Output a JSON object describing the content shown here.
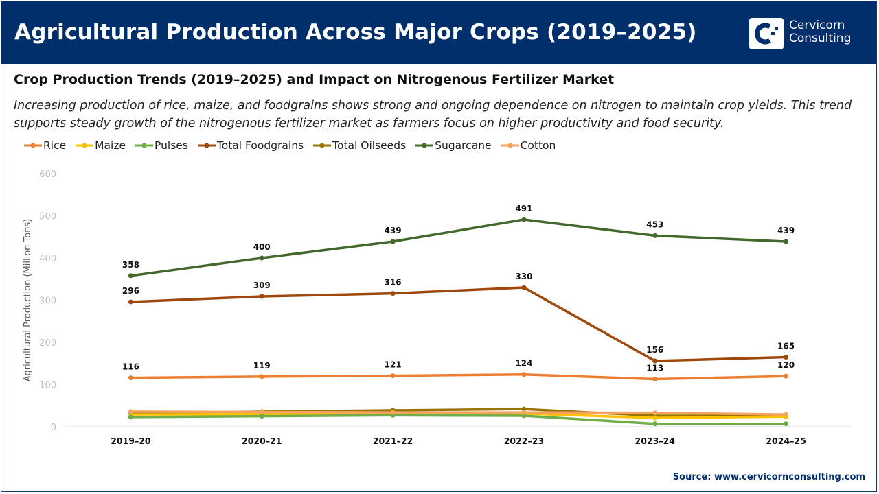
{
  "header": {
    "title": "Agricultural Production Across Major Crops (2019–2025)",
    "logo_line1": "Cervicorn",
    "logo_line2": "Consulting"
  },
  "subtitle": "Crop Production Trends (2019–2025) and Impact on Nitrogenous Fertilizer Market",
  "description": "Increasing production of rice, maize, and foodgrains shows strong and ongoing dependence on nitrogen to maintain crop yields. This trend supports steady growth of the nitrogenous fertilizer market as farmers focus on higher productivity and food security.",
  "source": "Source: www.cervicornconsulting.com",
  "chart_data": {
    "type": "line",
    "categories": [
      "2019–20",
      "2020–21",
      "2021–22",
      "2022–23",
      "2023–24",
      "2024–25"
    ],
    "ylabel": "Agricultural Production (Million Tons)",
    "ylim": [
      0,
      600
    ],
    "yticks": [
      0,
      100,
      200,
      300,
      400,
      500,
      600
    ],
    "grid": false,
    "legend": "top-left",
    "series": [
      {
        "name": "Rice",
        "color": "#ed7d31",
        "values": [
          116,
          119,
          121,
          124,
          113,
          120
        ],
        "labels": true
      },
      {
        "name": "Maize",
        "color": "#ffc000",
        "values": [
          29,
          30,
          30,
          31,
          21,
          24
        ]
      },
      {
        "name": "Pulses",
        "color": "#70ad47",
        "values": [
          23,
          25,
          27,
          26,
          7,
          7
        ]
      },
      {
        "name": "Total Foodgrains",
        "color": "#9e480e",
        "values": [
          296,
          309,
          316,
          330,
          156,
          165
        ],
        "labels": true
      },
      {
        "name": "Total Oilseeds",
        "color": "#997300",
        "values": [
          31,
          36,
          39,
          42,
          26,
          26
        ]
      },
      {
        "name": "Sugarcane",
        "color": "#43682b",
        "values": [
          358,
          400,
          439,
          491,
          453,
          439
        ],
        "labels": true
      },
      {
        "name": "Cotton",
        "color": "#f4a460",
        "values": [
          36,
          35,
          34,
          34,
          33,
          29
        ]
      }
    ]
  }
}
